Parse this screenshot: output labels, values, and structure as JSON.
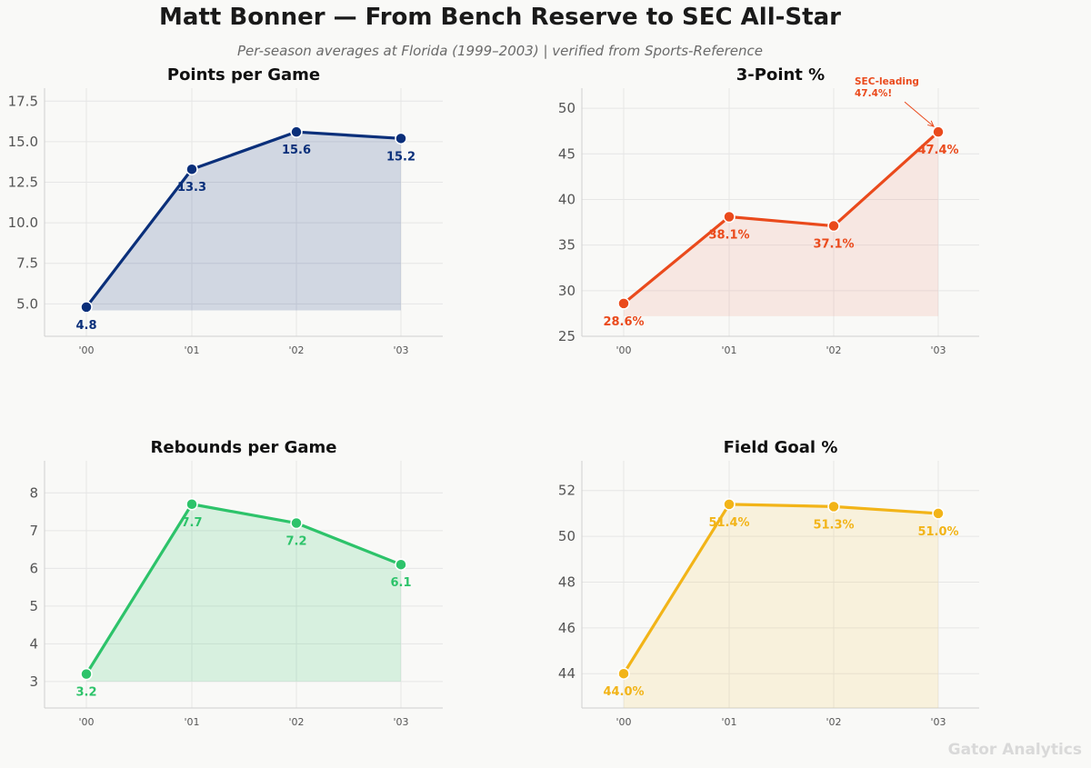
{
  "header": {
    "title": "Matt Bonner — From Bench Reserve to SEC All-Star",
    "subtitle": "Per-season averages at Florida (1999–2003) | verified from Sports-Reference"
  },
  "watermark": "Gator Analytics",
  "chart_data": [
    {
      "type": "line",
      "title": "Points per Game",
      "categories": [
        "'00",
        "'01",
        "'02",
        "'03"
      ],
      "values": [
        4.8,
        13.3,
        15.6,
        15.2
      ],
      "data_labels": [
        "4.8",
        "13.3",
        "15.6",
        "15.2"
      ],
      "ylim": [
        3.0,
        18.3
      ],
      "yticks": [
        5.0,
        7.5,
        10.0,
        12.5,
        15.0,
        17.5
      ],
      "ytick_labels": [
        "5.0",
        "7.5",
        "10.0",
        "12.5",
        "15.0",
        "17.5"
      ],
      "fill_base": 4.6,
      "color": "#0a2f7a",
      "fill_color": "#0a2f7a",
      "grid": true
    },
    {
      "type": "line",
      "title": "3-Point %",
      "categories": [
        "'00",
        "'01",
        "'02",
        "'03"
      ],
      "values": [
        28.6,
        38.1,
        37.1,
        47.4
      ],
      "data_labels": [
        "28.6%",
        "38.1%",
        "37.1%",
        "47.4%"
      ],
      "ylim": [
        25,
        52.2
      ],
      "yticks": [
        25,
        30,
        35,
        40,
        45,
        50
      ],
      "ytick_labels": [
        "25",
        "30",
        "35",
        "40",
        "45",
        "50"
      ],
      "fill_base": 27.2,
      "color": "#ea4a1c",
      "fill_color": "#f08f7a",
      "grid": true,
      "annotation": {
        "text_lines": [
          "SEC-leading",
          "47.4%!"
        ],
        "target_index": 3
      }
    },
    {
      "type": "line",
      "title": "Rebounds per Game",
      "categories": [
        "'00",
        "'01",
        "'02",
        "'03"
      ],
      "values": [
        3.2,
        7.7,
        7.2,
        6.1
      ],
      "data_labels": [
        "3.2",
        "7.7",
        "7.2",
        "6.1"
      ],
      "ylim": [
        2.3,
        8.85
      ],
      "yticks": [
        3,
        4,
        5,
        6,
        7,
        8
      ],
      "ytick_labels": [
        "3",
        "4",
        "5",
        "6",
        "7",
        "8"
      ],
      "fill_base": 3.0,
      "color": "#2dc36a",
      "fill_color": "#2dc36a",
      "grid": true
    },
    {
      "type": "line",
      "title": "Field Goal %",
      "categories": [
        "'00",
        "'01",
        "'02",
        "'03"
      ],
      "values": [
        44.0,
        51.4,
        51.3,
        51.0
      ],
      "data_labels": [
        "44.0%",
        "51.4%",
        "51.3%",
        "51.0%"
      ],
      "ylim": [
        42.5,
        53.3
      ],
      "yticks": [
        44,
        46,
        48,
        50,
        52
      ],
      "ytick_labels": [
        "44",
        "46",
        "48",
        "50",
        "52"
      ],
      "fill_base": 42.5,
      "color": "#f2b418",
      "fill_color": "#f5cc5a",
      "grid": true
    }
  ]
}
